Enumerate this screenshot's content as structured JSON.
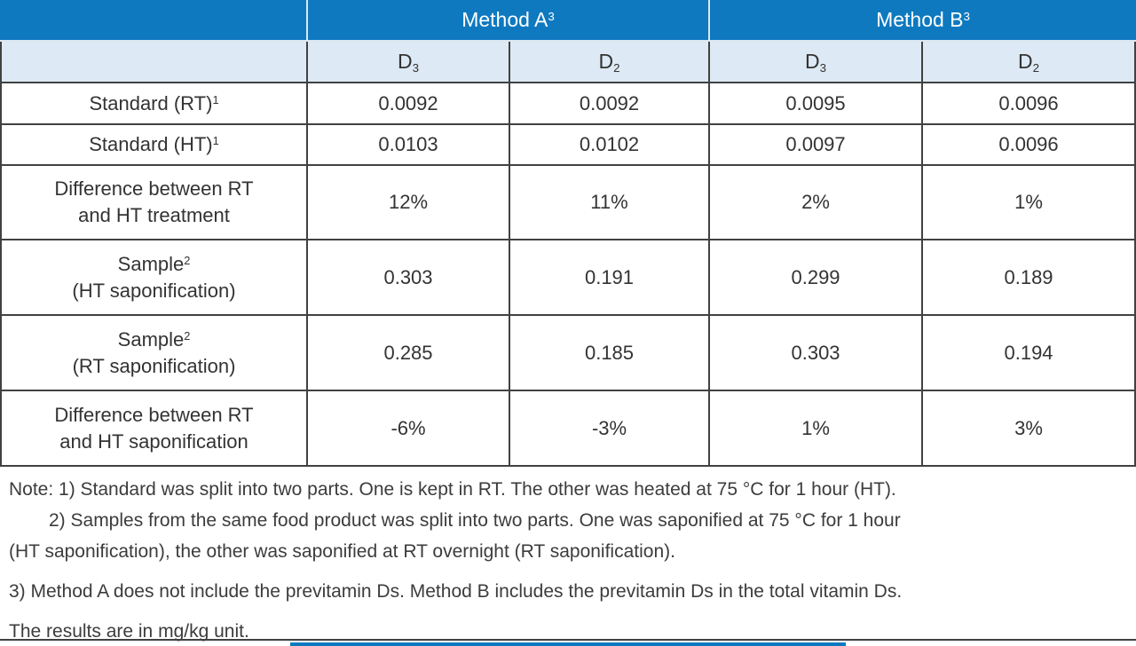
{
  "table": {
    "header": {
      "method_a": "Method A",
      "method_a_sup": "3",
      "method_b": "Method B",
      "method_b_sup": "3",
      "sub": [
        {
          "base": "D",
          "sub": "3"
        },
        {
          "base": "D",
          "sub": "2"
        },
        {
          "base": "D",
          "sub": "3"
        },
        {
          "base": "D",
          "sub": "2"
        }
      ]
    },
    "rows": [
      {
        "l1": "Standard (RT)",
        "l1sup": "1",
        "l2": "",
        "values": [
          "0.0092",
          "0.0092",
          "0.0095",
          "0.0096"
        ]
      },
      {
        "l1": "Standard (HT)",
        "l1sup": "1",
        "l2": "",
        "values": [
          "0.0103",
          "0.0102",
          "0.0097",
          "0.0096"
        ]
      },
      {
        "l1": "Difference between RT",
        "l1sup": "",
        "l2": "and HT treatment",
        "values": [
          "12%",
          "11%",
          "2%",
          "1%"
        ]
      },
      {
        "l1": "Sample",
        "l1sup": "2",
        "l2": "(HT saponification)",
        "values": [
          "0.303",
          "0.191",
          "0.299",
          "0.189"
        ]
      },
      {
        "l1": "Sample",
        "l1sup": "2",
        "l2": "(RT saponification)",
        "values": [
          "0.285",
          "0.185",
          "0.303",
          "0.194"
        ]
      },
      {
        "l1": "Difference between RT",
        "l1sup": "",
        "l2": "and HT saponification",
        "values": [
          "-6%",
          "-3%",
          "1%",
          "3%"
        ]
      }
    ]
  },
  "notes": {
    "line1": "Note: 1) Standard was split into two parts. One is kept in RT. The other was heated at 75 °C for 1 hour (HT).",
    "line2": "2) Samples from the same food product was split into two parts. One was saponified at 75 °C for 1 hour",
    "line3": "(HT saponification), the other was saponified at RT overnight (RT saponification).",
    "line4": "3) Method A does not include the previtamin Ds. Method B includes the previtamin Ds in the total vitamin Ds.",
    "line5": "The results are in mg/kg unit."
  },
  "colors": {
    "header_blue": "#0e79bf",
    "subheader_blue": "#dde9f4",
    "border": "#414141",
    "text": "#363636"
  }
}
